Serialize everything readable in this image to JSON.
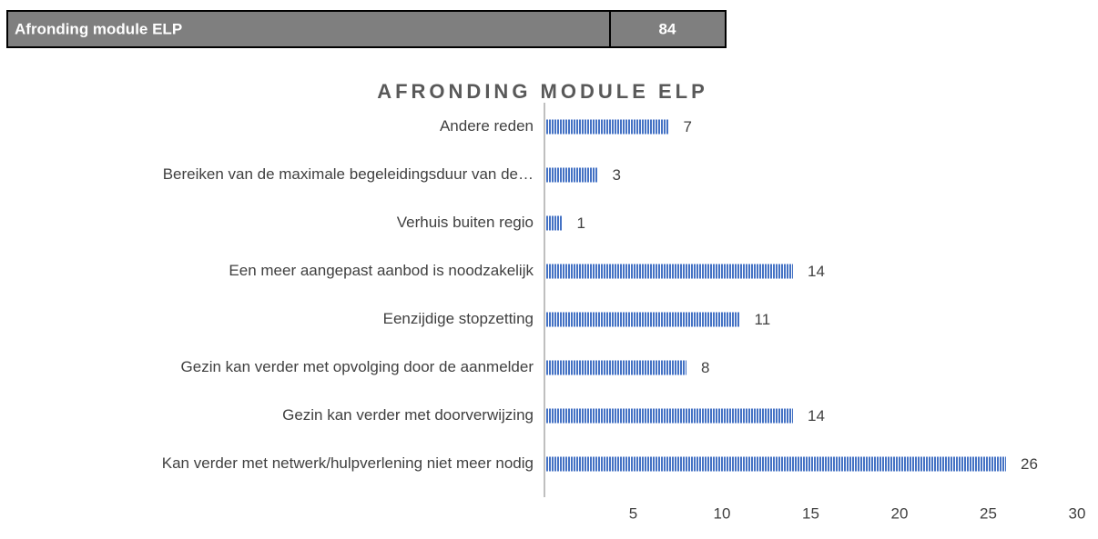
{
  "table": {
    "rows": [
      [
        "Afronding module ELP",
        "84"
      ]
    ]
  },
  "chart_data": {
    "type": "bar",
    "orientation": "horizontal",
    "title": "AFRONDING MODULE ELP",
    "categories": [
      "Andere reden",
      "Bereiken van de maximale begeleidingsduur van de…",
      "Verhuis buiten regio",
      "Een meer aangepast aanbod is noodzakelijk",
      "Eenzijdige stopzetting",
      "Gezin kan verder met opvolging door de aanmelder",
      "Gezin kan verder met doorverwijzing",
      "Kan verder met netwerk/hulpverlening niet meer nodig"
    ],
    "values": [
      7,
      3,
      1,
      14,
      11,
      8,
      14,
      26
    ],
    "color": "#4472c4",
    "xlim": [
      0,
      30
    ],
    "xticks": [
      5,
      10,
      15,
      20,
      25,
      30
    ]
  }
}
